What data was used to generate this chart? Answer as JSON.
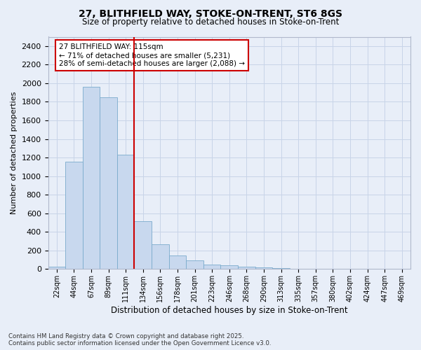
{
  "title_line1": "27, BLITHFIELD WAY, STOKE-ON-TRENT, ST6 8GS",
  "title_line2": "Size of property relative to detached houses in Stoke-on-Trent",
  "xlabel": "Distribution of detached houses by size in Stoke-on-Trent",
  "ylabel": "Number of detached properties",
  "categories": [
    "22sqm",
    "44sqm",
    "67sqm",
    "89sqm",
    "111sqm",
    "134sqm",
    "156sqm",
    "178sqm",
    "201sqm",
    "223sqm",
    "246sqm",
    "268sqm",
    "290sqm",
    "313sqm",
    "335sqm",
    "357sqm",
    "380sqm",
    "402sqm",
    "424sqm",
    "447sqm",
    "469sqm"
  ],
  "values": [
    25,
    1155,
    1960,
    1850,
    1230,
    515,
    270,
    150,
    90,
    50,
    40,
    25,
    15,
    10,
    5,
    5,
    5,
    2,
    2,
    2,
    1
  ],
  "bar_color": "#c8d8ee",
  "bar_edge_color": "#7aabcc",
  "red_line_index": 4,
  "red_line_color": "#cc0000",
  "annotation_text": "27 BLITHFIELD WAY: 115sqm\n← 71% of detached houses are smaller (5,231)\n28% of semi-detached houses are larger (2,088) →",
  "annotation_box_facecolor": "#ffffff",
  "annotation_box_edgecolor": "#cc0000",
  "ylim": [
    0,
    2500
  ],
  "yticks": [
    0,
    200,
    400,
    600,
    800,
    1000,
    1200,
    1400,
    1600,
    1800,
    2000,
    2200,
    2400
  ],
  "grid_color": "#c8d4e8",
  "background_color": "#e8eef8",
  "plot_bg_color": "#eef2f8",
  "footer_line1": "Contains HM Land Registry data © Crown copyright and database right 2025.",
  "footer_line2": "Contains public sector information licensed under the Open Government Licence v3.0."
}
